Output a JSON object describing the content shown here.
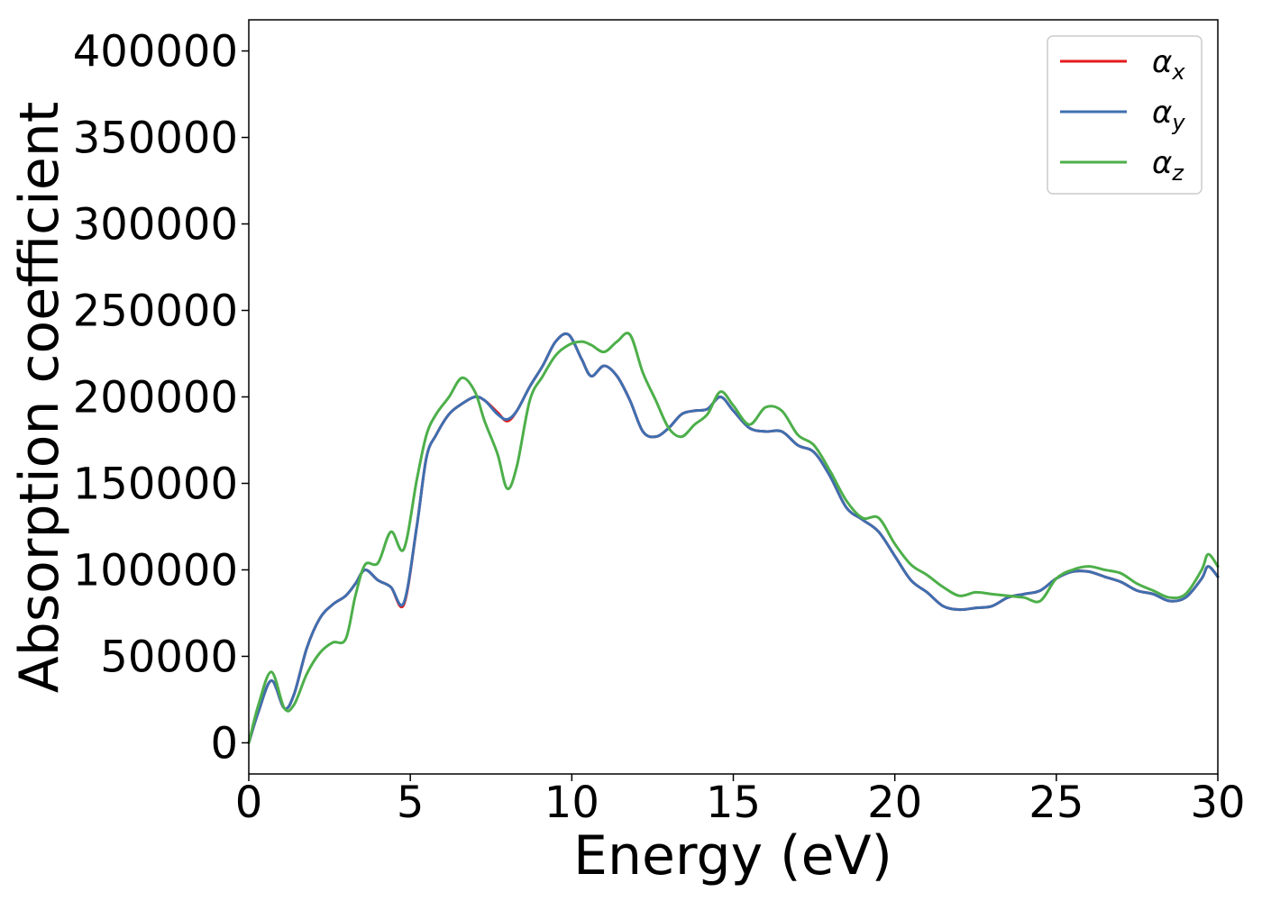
{
  "chart_data": {
    "type": "line",
    "xlabel": "Energy (eV)",
    "ylabel": "Absorption coefficient",
    "xlim": [
      0,
      30
    ],
    "ylim": [
      -18000,
      418000
    ],
    "x_ticks": [
      0,
      5,
      10,
      15,
      20,
      25,
      30
    ],
    "y_ticks": [
      0,
      50000,
      100000,
      150000,
      200000,
      250000,
      300000,
      350000,
      400000
    ],
    "grid": false,
    "legend_position": "top-right",
    "series": [
      {
        "name": "α",
        "subscript": "x",
        "color": "#e41a1c",
        "x": [
          0,
          0.3,
          0.7,
          1.1,
          1.4,
          1.8,
          2.2,
          2.6,
          3.0,
          3.3,
          3.6,
          4.0,
          4.4,
          4.8,
          5.2,
          5.5,
          5.8,
          6.2,
          6.6,
          7.0,
          7.3,
          7.7,
          8.0,
          8.3,
          8.7,
          9.1,
          9.5,
          9.9,
          10.3,
          10.6,
          11.0,
          11.4,
          11.8,
          12.2,
          12.6,
          13.0,
          13.4,
          13.8,
          14.2,
          14.6,
          15.0,
          15.5,
          16.0,
          16.5,
          17.0,
          17.5,
          18.0,
          18.5,
          19.0,
          19.5,
          20.0,
          20.5,
          21.0,
          21.5,
          22.0,
          22.5,
          23.0,
          23.5,
          24.0,
          24.5,
          25.0,
          25.5,
          26.0,
          26.5,
          27.0,
          27.5,
          28.0,
          28.5,
          29.0,
          29.5,
          29.7,
          30.0
        ],
        "y": [
          0,
          18000,
          36000,
          20000,
          28000,
          55000,
          72000,
          80000,
          85000,
          92000,
          100000,
          94000,
          90000,
          80000,
          125000,
          165000,
          178000,
          190000,
          196000,
          200000,
          198000,
          191000,
          186000,
          192000,
          206000,
          218000,
          232000,
          236000,
          222000,
          212000,
          218000,
          212000,
          198000,
          180000,
          177000,
          182000,
          190000,
          192000,
          193000,
          200000,
          192000,
          182000,
          180000,
          180000,
          172000,
          168000,
          154000,
          136000,
          129000,
          122000,
          108000,
          94000,
          87000,
          79000,
          77000,
          78000,
          79000,
          84000,
          86000,
          88000,
          95000,
          99000,
          99000,
          96000,
          93000,
          88000,
          86000,
          82000,
          84000,
          95000,
          102000,
          96000
        ]
      },
      {
        "name": "α",
        "subscript": "y",
        "color": "#3e6fb0",
        "x": [
          0,
          0.3,
          0.7,
          1.1,
          1.4,
          1.8,
          2.2,
          2.6,
          3.0,
          3.3,
          3.6,
          4.0,
          4.4,
          4.8,
          5.2,
          5.5,
          5.8,
          6.2,
          6.6,
          7.0,
          7.3,
          7.7,
          8.0,
          8.3,
          8.7,
          9.1,
          9.5,
          9.9,
          10.3,
          10.6,
          11.0,
          11.4,
          11.8,
          12.2,
          12.6,
          13.0,
          13.4,
          13.8,
          14.2,
          14.6,
          15.0,
          15.5,
          16.0,
          16.5,
          17.0,
          17.5,
          18.0,
          18.5,
          19.0,
          19.5,
          20.0,
          20.5,
          21.0,
          21.5,
          22.0,
          22.5,
          23.0,
          23.5,
          24.0,
          24.5,
          25.0,
          25.5,
          26.0,
          26.5,
          27.0,
          27.5,
          28.0,
          28.5,
          29.0,
          29.5,
          29.7,
          30.0
        ],
        "y": [
          0,
          18000,
          36000,
          20000,
          28000,
          55000,
          72000,
          80000,
          85000,
          92000,
          100000,
          94000,
          90000,
          81000,
          125000,
          165000,
          178000,
          190000,
          196000,
          200000,
          198000,
          190000,
          187000,
          192000,
          206000,
          218000,
          232000,
          236000,
          222000,
          212000,
          218000,
          212000,
          198000,
          180000,
          177000,
          182000,
          190000,
          192000,
          193000,
          200000,
          192000,
          182000,
          180000,
          180000,
          172000,
          168000,
          154000,
          136000,
          129000,
          122000,
          108000,
          94000,
          87000,
          79000,
          77000,
          78000,
          79000,
          84000,
          86000,
          88000,
          95000,
          99000,
          99000,
          96000,
          93000,
          88000,
          86000,
          82000,
          84000,
          95000,
          102000,
          96000
        ]
      },
      {
        "name": "α",
        "subscript": "z",
        "color": "#4daf4a",
        "x": [
          0,
          0.3,
          0.7,
          1.1,
          1.4,
          1.8,
          2.2,
          2.6,
          3.0,
          3.3,
          3.6,
          4.0,
          4.4,
          4.8,
          5.2,
          5.5,
          5.8,
          6.2,
          6.6,
          7.0,
          7.3,
          7.7,
          8.0,
          8.3,
          8.7,
          9.1,
          9.5,
          9.9,
          10.3,
          10.6,
          11.0,
          11.4,
          11.8,
          12.2,
          12.6,
          13.0,
          13.4,
          13.8,
          14.2,
          14.6,
          15.0,
          15.5,
          16.0,
          16.5,
          17.0,
          17.5,
          18.0,
          18.5,
          19.0,
          19.5,
          20.0,
          20.5,
          21.0,
          21.5,
          22.0,
          22.5,
          23.0,
          23.5,
          24.0,
          24.5,
          25.0,
          25.5,
          26.0,
          26.5,
          27.0,
          27.5,
          28.0,
          28.5,
          29.0,
          29.5,
          29.7,
          30.0
        ],
        "y": [
          0,
          22000,
          41000,
          20000,
          22000,
          40000,
          52000,
          58000,
          60000,
          85000,
          103000,
          104000,
          122000,
          112000,
          152000,
          178000,
          190000,
          200000,
          211000,
          203000,
          186000,
          167000,
          147000,
          160000,
          198000,
          212000,
          224000,
          230000,
          232000,
          230000,
          226000,
          232000,
          236000,
          214000,
          198000,
          182000,
          177000,
          184000,
          190000,
          203000,
          195000,
          184000,
          194000,
          192000,
          178000,
          172000,
          157000,
          140000,
          130000,
          130000,
          115000,
          103000,
          97000,
          90000,
          85000,
          87000,
          86000,
          85000,
          84000,
          82000,
          95000,
          100000,
          102000,
          100000,
          98000,
          92000,
          88000,
          84000,
          86000,
          100000,
          109000,
          102000
        ]
      }
    ]
  }
}
